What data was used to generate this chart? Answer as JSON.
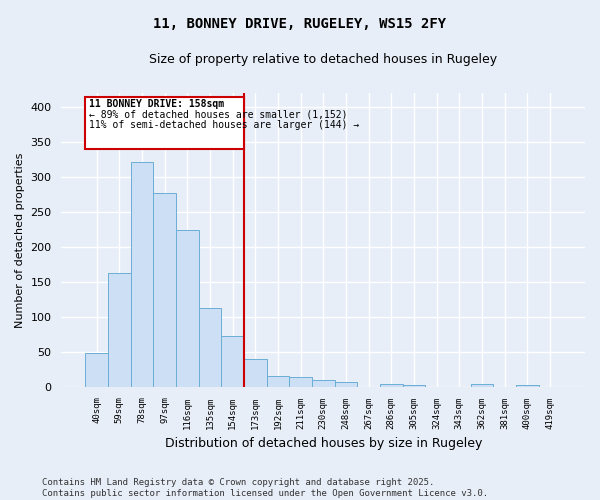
{
  "title": "11, BONNEY DRIVE, RUGELEY, WS15 2FY",
  "subtitle": "Size of property relative to detached houses in Rugeley",
  "xlabel": "Distribution of detached houses by size in Rugeley",
  "ylabel": "Number of detached properties",
  "categories": [
    "40sqm",
    "59sqm",
    "78sqm",
    "97sqm",
    "116sqm",
    "135sqm",
    "154sqm",
    "173sqm",
    "192sqm",
    "211sqm",
    "230sqm",
    "248sqm",
    "267sqm",
    "286sqm",
    "305sqm",
    "324sqm",
    "343sqm",
    "362sqm",
    "381sqm",
    "400sqm",
    "419sqm"
  ],
  "values": [
    48,
    162,
    321,
    277,
    224,
    112,
    72,
    39,
    15,
    14,
    9,
    7,
    0,
    4,
    3,
    0,
    0,
    4,
    0,
    2,
    0
  ],
  "bar_color": "#ccdff5",
  "bar_edge_color": "#6aaed6",
  "ref_line_x": 6.5,
  "ref_line_label": "11 BONNEY DRIVE: 158sqm",
  "annotation_line1": "← 89% of detached houses are smaller (1,152)",
  "annotation_line2": "11% of semi-detached houses are larger (144) →",
  "annotation_box_color": "#ffffff",
  "annotation_box_edge": "#cc0000",
  "bg_color": "#e8eef8",
  "grid_color": "#ffffff",
  "ref_line_color": "#cc0000",
  "footer": "Contains HM Land Registry data © Crown copyright and database right 2025.\nContains public sector information licensed under the Open Government Licence v3.0.",
  "ylim": [
    0,
    420
  ],
  "yticks": [
    0,
    50,
    100,
    150,
    200,
    250,
    300,
    350,
    400
  ]
}
